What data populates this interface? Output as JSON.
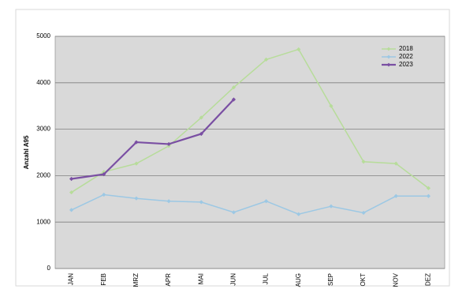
{
  "chart_data": {
    "type": "line",
    "y_label": "Anzahl A95",
    "categories": [
      "JAN",
      "FEB",
      "MRZ",
      "APR",
      "MAI",
      "JUN",
      "JUL",
      "AUG",
      "SEP",
      "OKT",
      "NOV",
      "DEZ"
    ],
    "series": [
      {
        "name": "2018",
        "color": "#b7dc9a",
        "values": [
          1640,
          2080,
          2260,
          2640,
          3250,
          3900,
          4500,
          4720,
          3500,
          2300,
          2260,
          1730
        ]
      },
      {
        "name": "2022",
        "color": "#9cc8e4",
        "values": [
          1260,
          1590,
          1510,
          1450,
          1430,
          1210,
          1450,
          1170,
          1340,
          1200,
          1560,
          1560
        ]
      },
      {
        "name": "2023",
        "color": "#7a4fa3",
        "values": [
          1930,
          2030,
          2720,
          2680,
          2900,
          3640,
          null,
          null,
          null,
          null,
          null,
          null
        ]
      }
    ],
    "ylim": [
      0,
      5000
    ],
    "yticks": [
      0,
      1000,
      2000,
      3000,
      4000,
      5000
    ],
    "grid": true,
    "legend": "top-right"
  }
}
